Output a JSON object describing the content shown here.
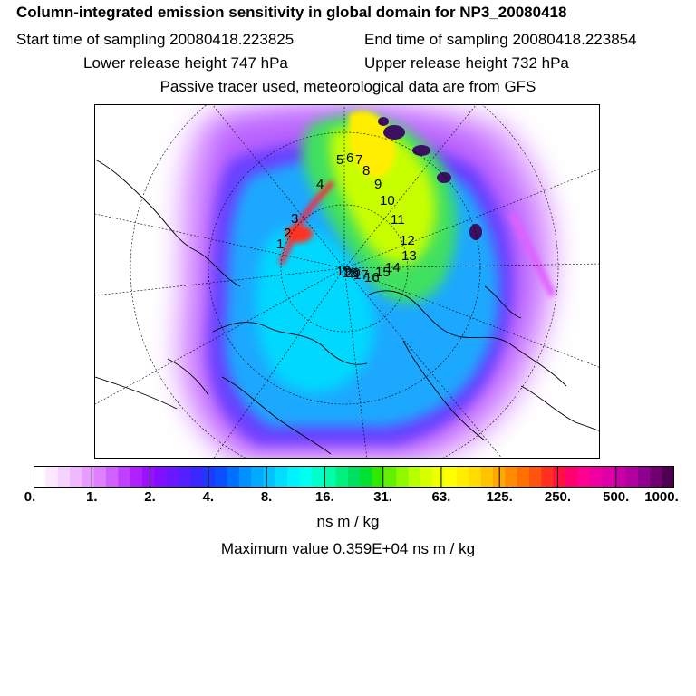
{
  "title": "Column-integrated emission sensitivity in global domain for NP3_20080418",
  "sampling": {
    "start_label": "Start time of sampling 20080418.223825",
    "end_label": "End time of sampling 20080418.223854"
  },
  "release": {
    "lower_label": "Lower release height  747 hPa",
    "upper_label": "Upper release height  732 hPa"
  },
  "note": "Passive tracer used, meteorological data are from GFS",
  "map": {
    "projection": "polar-stereographic",
    "trajectory_labels": [
      "1",
      "2",
      "3",
      "4",
      "5",
      "6",
      "7",
      "8",
      "9",
      "10",
      "11",
      "12",
      "13",
      "14",
      "15",
      "16",
      "17",
      "18",
      "19",
      "20"
    ]
  },
  "colorbar": {
    "tick_labels": [
      "0.",
      "1.",
      "2.",
      "4.",
      "8.",
      "16.",
      "31.",
      "63.",
      "125.",
      "250.",
      "500.",
      "1000."
    ],
    "colors": [
      "#ffffff",
      "#fbe8ff",
      "#f6d2ff",
      "#f0b8ff",
      "#e89cff",
      "#de80ff",
      "#d060ff",
      "#c040ff",
      "#b020ff",
      "#9a10ff",
      "#8010ff",
      "#6a18ff",
      "#5420ff",
      "#3a28ff",
      "#1f38ff",
      "#0a50ff",
      "#0070ff",
      "#0090ff",
      "#00aaff",
      "#00c4ff",
      "#00ddff",
      "#00f2ff",
      "#00ffee",
      "#00ffcc",
      "#00ffaa",
      "#00f080",
      "#00e060",
      "#00e030",
      "#30e800",
      "#60f000",
      "#8ef800",
      "#b8ff00",
      "#d8ff00",
      "#eeff00",
      "#ffff00",
      "#ffee00",
      "#ffdd00",
      "#ffc400",
      "#ffa800",
      "#ff8c00",
      "#ff7000",
      "#ff5410",
      "#ff3020",
      "#ff1040",
      "#ff0070",
      "#ff0090",
      "#f000a0",
      "#e000a8",
      "#c800a8",
      "#b000a0",
      "#900090",
      "#700070",
      "#500050"
    ],
    "unit": "ns m / kg"
  },
  "maximum_label": "Maximum value  0.359E+04 ns m / kg"
}
